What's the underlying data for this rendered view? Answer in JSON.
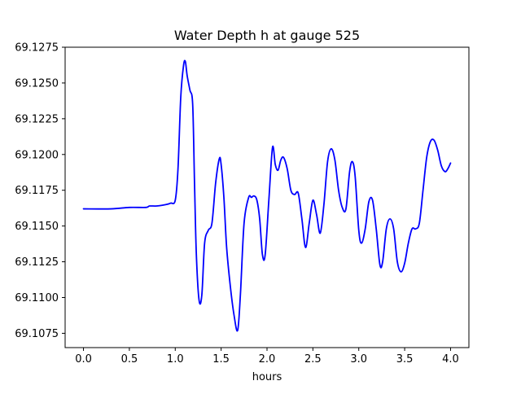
{
  "chart_data": {
    "type": "line",
    "title": "Water Depth h at gauge 525",
    "xlabel": "hours",
    "ylabel": "",
    "xlim": [
      -0.2,
      4.2
    ],
    "ylim": [
      69.1065,
      69.1275
    ],
    "xticks": [
      0.0,
      0.5,
      1.0,
      1.5,
      2.0,
      2.5,
      3.0,
      3.5,
      4.0
    ],
    "xtick_labels": [
      "0.0",
      "0.5",
      "1.0",
      "1.5",
      "2.0",
      "2.5",
      "3.0",
      "3.5",
      "4.0"
    ],
    "yticks": [
      69.1075,
      69.11,
      69.1125,
      69.115,
      69.1175,
      69.12,
      69.1225,
      69.125,
      69.1275
    ],
    "ytick_labels": [
      "69.1075",
      "69.1100",
      "69.1125",
      "69.1150",
      "69.1175",
      "69.1200",
      "69.1225",
      "69.1250",
      "69.1275"
    ],
    "grid": false,
    "series": [
      {
        "color": "#0000ff",
        "x": [
          0.0,
          0.3,
          0.5,
          0.68,
          0.72,
          0.8,
          0.9,
          0.95,
          1.0,
          1.03,
          1.06,
          1.09,
          1.11,
          1.13,
          1.16,
          1.19,
          1.21,
          1.23,
          1.26,
          1.29,
          1.32,
          1.36,
          1.4,
          1.44,
          1.48,
          1.5,
          1.53,
          1.56,
          1.6,
          1.64,
          1.68,
          1.71,
          1.75,
          1.8,
          1.83,
          1.86,
          1.89,
          1.92,
          1.95,
          1.98,
          2.02,
          2.06,
          2.09,
          2.12,
          2.15,
          2.18,
          2.22,
          2.26,
          2.3,
          2.34,
          2.38,
          2.42,
          2.46,
          2.5,
          2.54,
          2.58,
          2.62,
          2.66,
          2.7,
          2.74,
          2.78,
          2.82,
          2.86,
          2.9,
          2.93,
          2.96,
          3.0,
          3.03,
          3.07,
          3.11,
          3.15,
          3.19,
          3.23,
          3.26,
          3.3,
          3.34,
          3.38,
          3.42,
          3.46,
          3.5,
          3.54,
          3.58,
          3.62,
          3.66,
          3.7,
          3.74,
          3.78,
          3.82,
          3.86,
          3.9,
          3.94,
          3.97,
          4.0
        ],
        "values": [
          69.1162,
          69.1162,
          69.1163,
          69.1163,
          69.1164,
          69.1164,
          69.1165,
          69.1166,
          69.1168,
          69.119,
          69.124,
          69.1262,
          69.1265,
          69.1255,
          69.1245,
          69.1235,
          69.118,
          69.113,
          69.1098,
          69.1102,
          69.1138,
          69.1147,
          69.1152,
          69.118,
          69.1197,
          69.1193,
          69.117,
          69.1135,
          69.1108,
          69.1088,
          69.1077,
          69.1102,
          69.1152,
          69.117,
          69.117,
          69.1171,
          69.1168,
          69.1155,
          69.113,
          69.113,
          69.1168,
          69.1205,
          69.1193,
          69.1189,
          69.1196,
          69.1198,
          69.119,
          69.1175,
          69.1172,
          69.1173,
          69.1155,
          69.1135,
          69.1152,
          69.1168,
          69.1158,
          69.1145,
          69.1165,
          69.1195,
          69.1204,
          69.1196,
          69.1175,
          69.1163,
          69.1162,
          69.1188,
          69.1195,
          69.1185,
          69.1147,
          69.1138,
          69.1148,
          69.1167,
          69.1168,
          69.1148,
          69.1123,
          69.1125,
          69.1148,
          69.1155,
          69.1148,
          69.1125,
          69.1118,
          69.1124,
          69.1138,
          69.1148,
          69.1148,
          69.1152,
          69.1175,
          69.1198,
          69.1209,
          69.121,
          69.1203,
          69.1192,
          69.1188,
          69.119,
          69.1194
        ]
      }
    ]
  }
}
